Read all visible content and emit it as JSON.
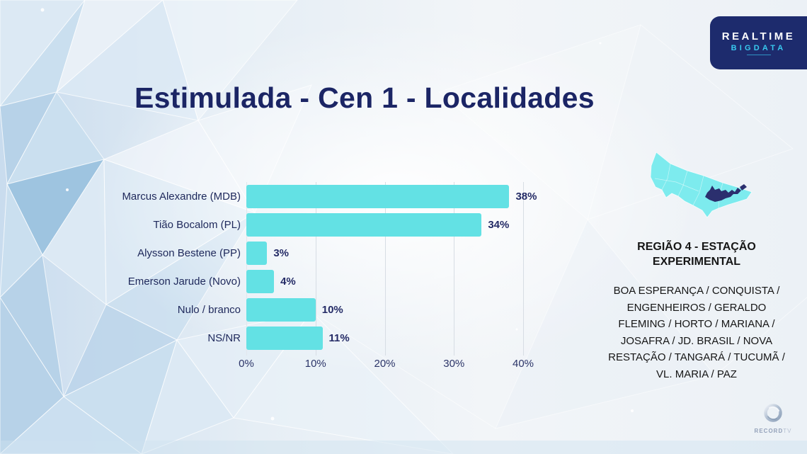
{
  "title": "Estimulada - Cen 1 - Localidades",
  "logo": {
    "line1": "REALTIME",
    "line2": "BIGDATA"
  },
  "chart_data": {
    "type": "bar",
    "orientation": "horizontal",
    "title": "Estimulada - Cen 1 - Localidades",
    "categories": [
      "Marcus Alexandre (MDB)",
      "Tião Bocalom (PL)",
      "Alysson Bestene (PP)",
      "Emerson Jarude (Novo)",
      "Nulo / branco",
      "NS/NR"
    ],
    "values": [
      38,
      34,
      3,
      4,
      10,
      11
    ],
    "value_suffix": "%",
    "xlim": [
      0,
      40
    ],
    "xtick_values": [
      0,
      10,
      20,
      30,
      40
    ],
    "xtick_labels": [
      "0%",
      "10%",
      "20%",
      "30%",
      "40%"
    ],
    "grid": true,
    "legend": false,
    "bar_color": "#63e1e4",
    "label_color": "#202a5c",
    "value_color": "#242b66"
  },
  "region": {
    "title": "REGIÃO 4 - ESTAÇÃO EXPERIMENTAL",
    "localities": "BOA ESPERANÇA / CONQUISTA / ENGENHEIROS / GERALDO FLEMING / HORTO / MARIANA / JOSAFRA / JD. BRASIL / NOVA RESTAÇÃO / TANGARÁ / TUCUMÃ / VL. MARIA / PAZ",
    "map_main_color": "#7debee",
    "map_highlight_color": "#2b2f6e"
  },
  "footer": {
    "record": "RECORD",
    "tv": "TV"
  }
}
